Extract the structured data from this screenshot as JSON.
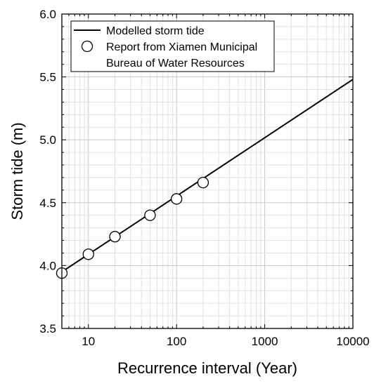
{
  "chart_data": {
    "type": "line",
    "xscale": "log",
    "xlim": [
      5,
      10000
    ],
    "ylim": [
      3.5,
      6.0
    ],
    "xlabel": "Recurrence interval (Year)",
    "ylabel": "Storm tide (m)",
    "x_ticks": [
      10,
      100,
      1000,
      10000
    ],
    "x_tick_labels": [
      "10",
      "100",
      "1000",
      "10000"
    ],
    "y_ticks": [
      3.5,
      4.0,
      4.5,
      5.0,
      5.5,
      6.0
    ],
    "y_tick_labels": [
      "3.5",
      "4.0",
      "4.5",
      "5.0",
      "5.5",
      "6.0"
    ],
    "grid": "minor and major, light gray",
    "legend_position": "top-left",
    "series": [
      {
        "name": "Modelled storm tide",
        "style": "line",
        "color": "#000000",
        "x": [
          5,
          10000
        ],
        "y": [
          3.95,
          5.48
        ]
      },
      {
        "name": "Report from Xiamen Municipal Bureau of Water Resources",
        "legend_lines": [
          "Report from Xiamen Municipal",
          "Bureau of Water Resources"
        ],
        "style": "open-circle",
        "color": "#000000",
        "x": [
          5,
          10,
          20,
          50,
          100,
          200
        ],
        "y": [
          3.94,
          4.09,
          4.23,
          4.4,
          4.53,
          4.66
        ]
      }
    ]
  }
}
